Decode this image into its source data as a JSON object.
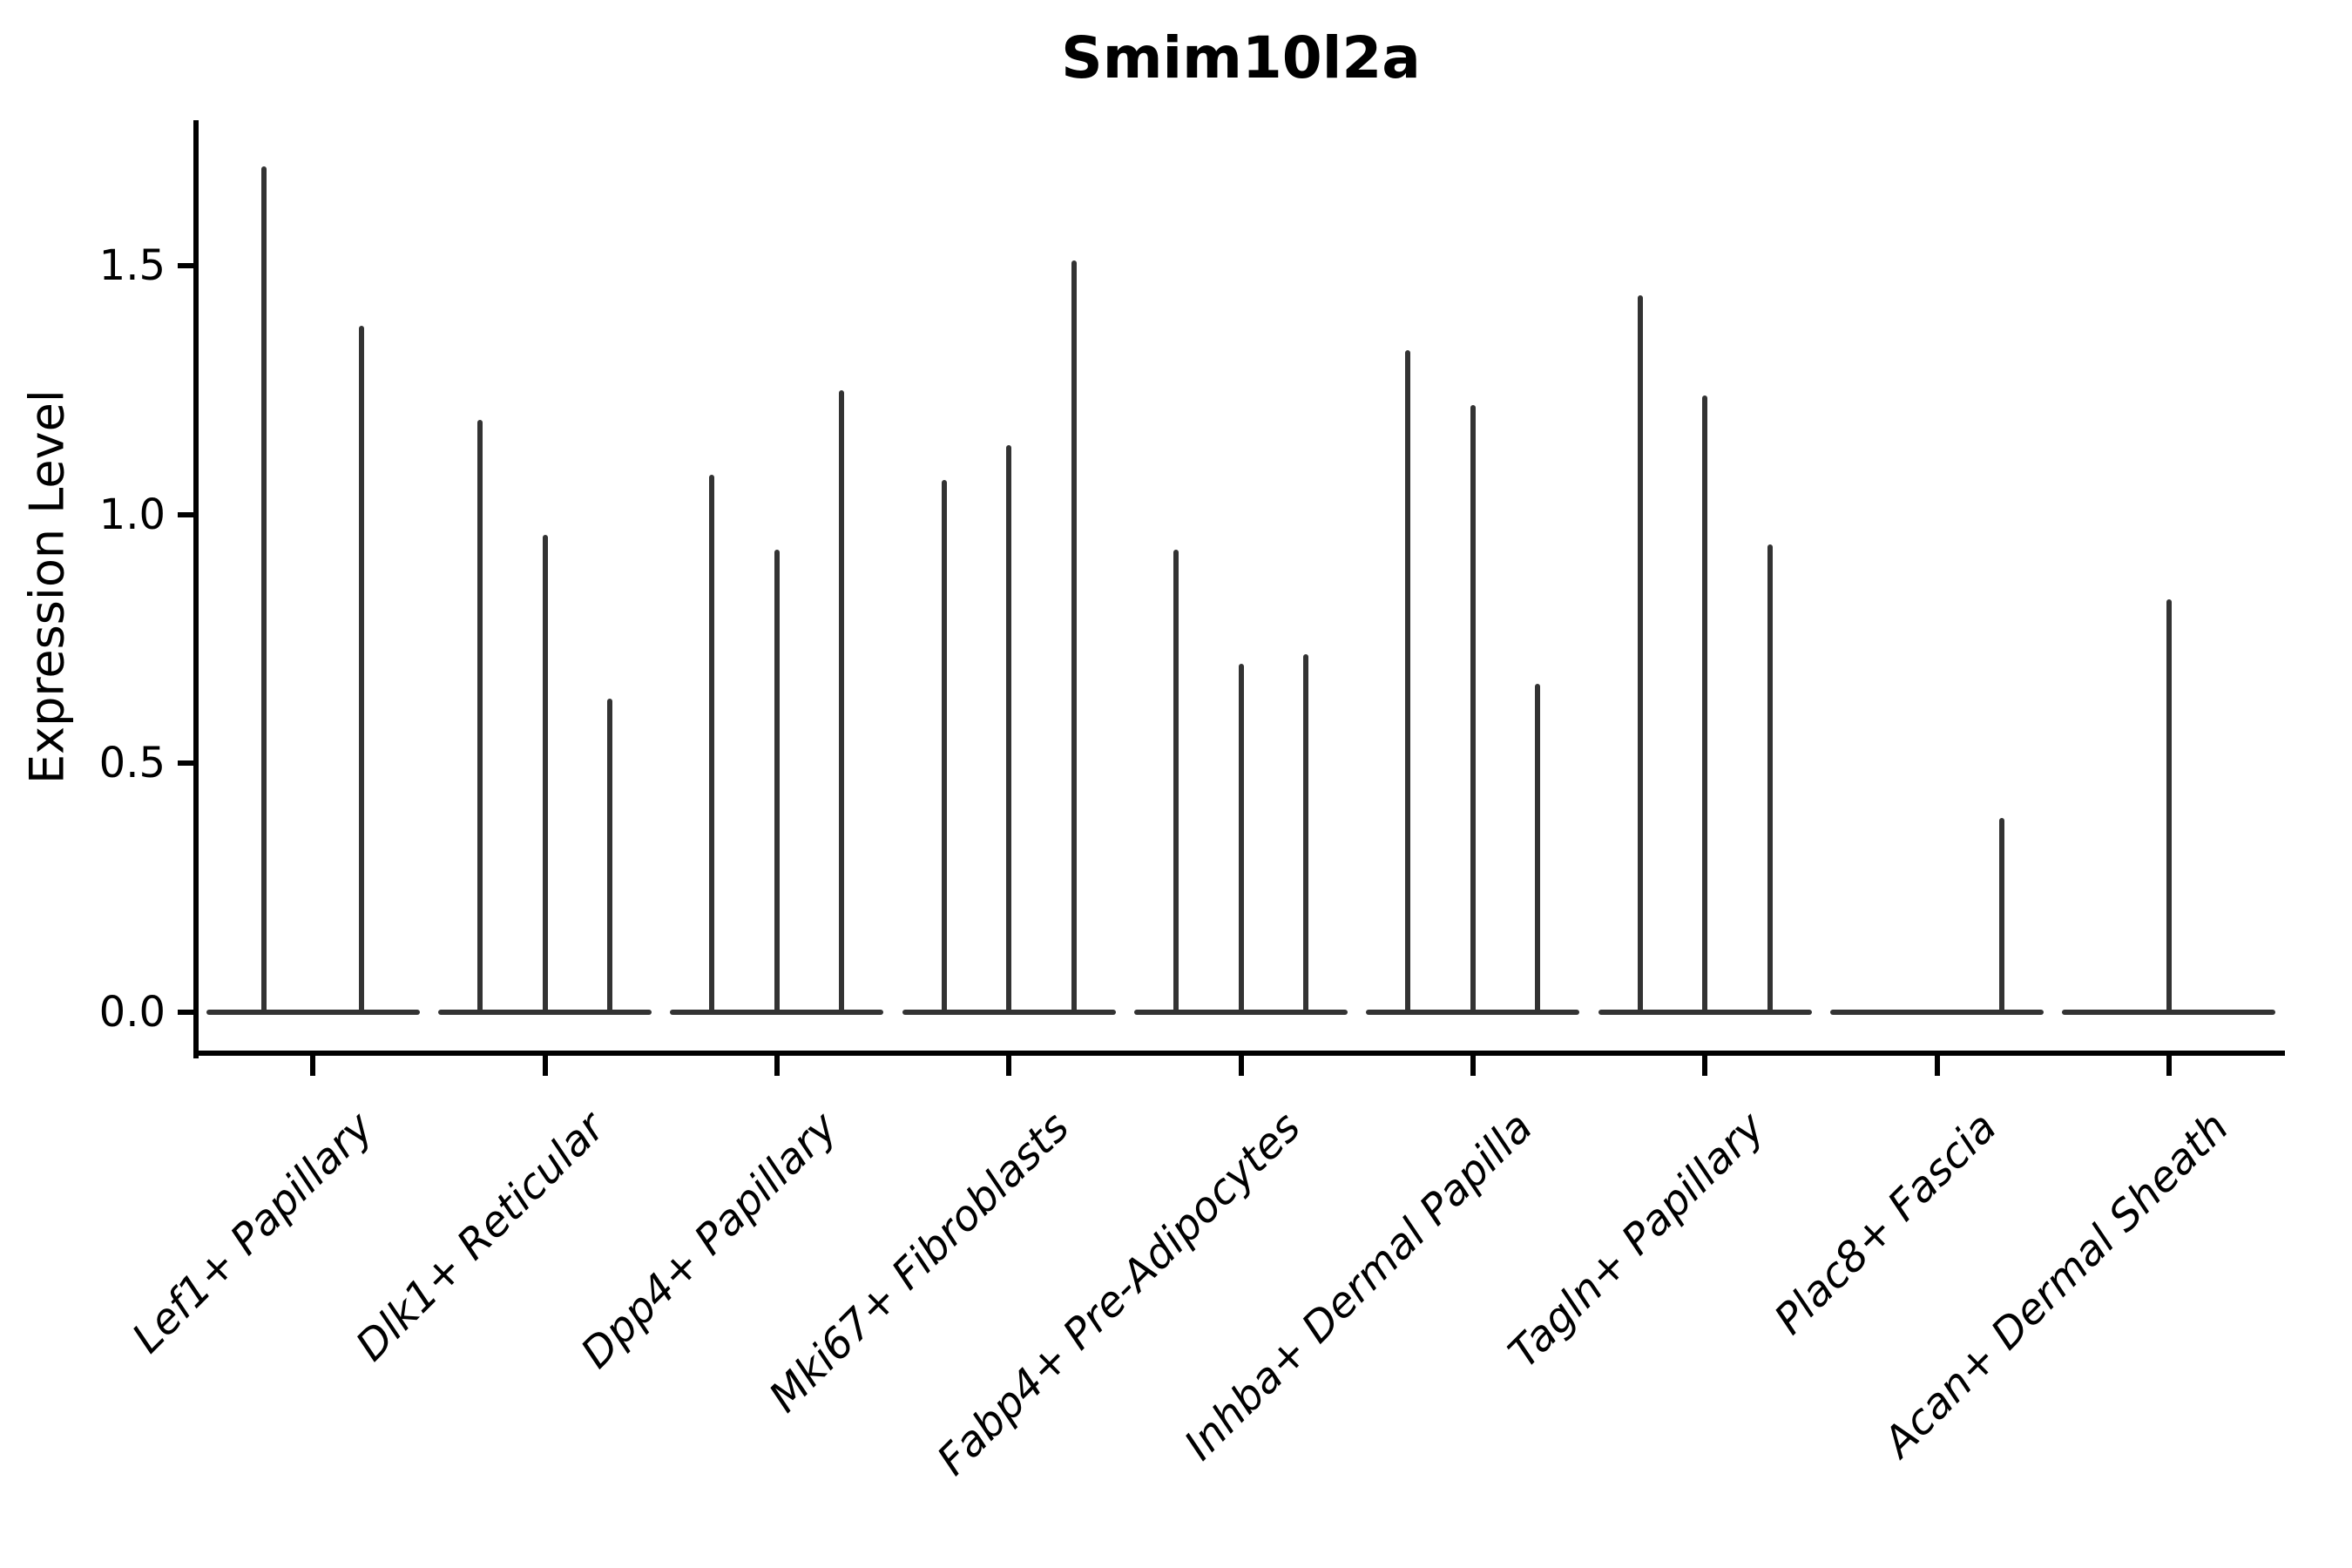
{
  "chart_data": {
    "type": "violin",
    "title": "Smim10l2a",
    "xlabel": "",
    "ylabel": "Expression Level",
    "ylim": [
      -0.08,
      1.79
    ],
    "grid": false,
    "legend": "none",
    "colors": {
      "violin": "#333333",
      "axis": "#000000",
      "background": "#ffffff",
      "text": "#000000"
    },
    "yticks": [
      {
        "label": "0.0",
        "value": 0.0
      },
      {
        "label": "0.5",
        "value": 0.5
      },
      {
        "label": "1.0",
        "value": 1.0
      },
      {
        "label": "1.5",
        "value": 1.5
      }
    ],
    "categories": [
      "Lef1+ Papillary",
      "Dlk1+ Reticular",
      "Dpp4+ Papillary",
      "Mki67+ Fibroblasts",
      "Fabp4+ Pre-Adipocytes",
      "Inhba+ Dermal Papilla",
      "Tagln+ Papillary",
      "Plac8+ Fascia",
      "Acan+ Dermal Sheath"
    ],
    "groups": [
      {
        "category": "Lef1+ Papillary",
        "violin_offsets": [
          -0.21,
          0.21
        ],
        "violin_max": [
          1.7,
          1.38
        ]
      },
      {
        "category": "Dlk1+ Reticular",
        "violin_offsets": [
          -0.28,
          0,
          0.28
        ],
        "violin_max": [
          1.19,
          0.96,
          0.63
        ]
      },
      {
        "category": "Dpp4+ Papillary",
        "violin_offsets": [
          -0.28,
          0,
          0.28
        ],
        "violin_max": [
          1.08,
          0.93,
          1.25
        ]
      },
      {
        "category": "Mki67+ Fibroblasts",
        "violin_offsets": [
          -0.28,
          0,
          0.28
        ],
        "violin_max": [
          1.07,
          1.14,
          1.51
        ]
      },
      {
        "category": "Fabp4+ Pre-Adipocytes",
        "violin_offsets": [
          -0.28,
          0,
          0.28
        ],
        "violin_max": [
          0.93,
          0.7,
          0.72
        ]
      },
      {
        "category": "Inhba+ Dermal Papilla",
        "violin_offsets": [
          -0.28,
          0,
          0.28
        ],
        "violin_max": [
          1.33,
          1.22,
          0.66
        ]
      },
      {
        "category": "Tagln+ Papillary",
        "violin_offsets": [
          -0.28,
          0,
          0.28
        ],
        "violin_max": [
          1.44,
          1.24,
          0.94
        ]
      },
      {
        "category": "Plac8+ Fascia",
        "violin_offsets": [
          -0.28,
          0,
          0.28
        ],
        "violin_max": [
          0,
          0,
          0.39
        ]
      },
      {
        "category": "Acan+ Dermal Sheath",
        "violin_offsets": [
          -0.28,
          0,
          0.28
        ],
        "violin_max": [
          0,
          0.83,
          0
        ]
      }
    ]
  }
}
